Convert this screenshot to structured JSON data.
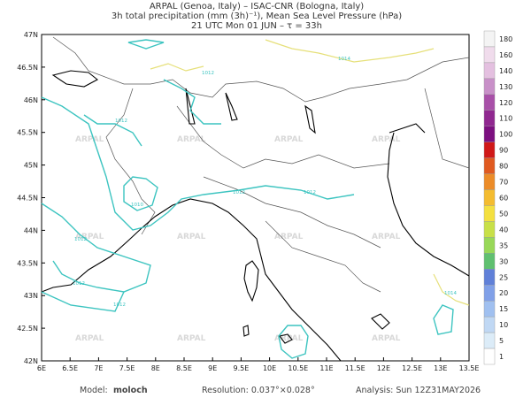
{
  "header": {
    "lines": [
      "ARPAL (Genoa, Italy)  –  ISAC-CNR (Bologna, Italy)",
      "3h total precipitation (mm (3h)⁻¹), Mean Sea Level Pressure (hPa)",
      "21 UTC Mon 01 JUN  –  τ = 33h"
    ]
  },
  "map": {
    "lat_labels": [
      "47N",
      "46.5N",
      "46N",
      "45.5N",
      "45N",
      "44.5N",
      "44N",
      "43.5N",
      "43N",
      "42.5N",
      "42N"
    ],
    "lon_labels": [
      "6E",
      "6.5E",
      "7E",
      "7.5E",
      "8E",
      "8.5E",
      "9E",
      "9.5E",
      "10E",
      "10.5E",
      "11E",
      "11.5E",
      "12E",
      "12.5E",
      "13E",
      "13.5E"
    ],
    "watermark": "ARPAL",
    "isobar_labels": [
      "1012",
      "1012",
      "1010",
      "1012",
      "1012",
      "1012",
      "1012",
      "1012",
      "1014",
      "1014"
    ]
  },
  "colorbar": {
    "labels": [
      "180",
      "160",
      "140",
      "130",
      "120",
      "110",
      "100",
      "90",
      "80",
      "70",
      "60",
      "50",
      "40",
      "35",
      "30",
      "25",
      "20",
      "15",
      "10",
      "5",
      "1"
    ],
    "colors": [
      "#f4f4f4",
      "#f0dcec",
      "#e4c0e0",
      "#c890c8",
      "#a850a8",
      "#902890",
      "#7c1080",
      "#d01818",
      "#e05a20",
      "#ec8c28",
      "#f4bc30",
      "#f4e040",
      "#c8e048",
      "#98d858",
      "#60c070",
      "#6080d8",
      "#80a0e8",
      "#a0c0f0",
      "#c0d8f4",
      "#dcecf8",
      "#ffffff"
    ]
  },
  "footer": {
    "model_label": "Model:",
    "model": "moloch",
    "resolution": "Resolution: 0.037°×0.028°",
    "analysis": "Analysis: Sun 12Z31MAY2026"
  }
}
